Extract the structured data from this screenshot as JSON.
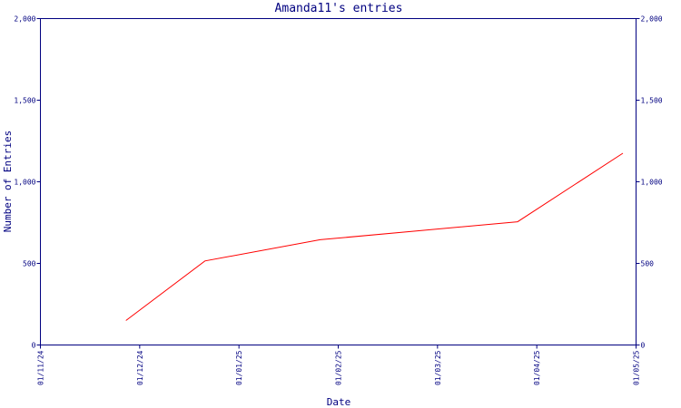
{
  "chart_data": {
    "type": "line",
    "title": "Amanda11's entries",
    "xlabel": "Date",
    "ylabel": "Number of Entries",
    "x_ticks": [
      "01/11/24",
      "01/12/24",
      "01/01/25",
      "01/02/25",
      "01/03/25",
      "01/04/25",
      "01/05/25"
    ],
    "y_ticks": [
      "0",
      "500",
      "1,000",
      "1,500",
      "2,000"
    ],
    "ylim": [
      0,
      2000
    ],
    "xlim": [
      "2024-11-01",
      "2025-05-01"
    ],
    "grid": false,
    "series": [
      {
        "color": "#ff0000",
        "points": [
          {
            "date": "2024-11-27",
            "value": 150
          },
          {
            "date": "2024-12-21",
            "value": 515
          },
          {
            "date": "2025-01-25",
            "value": 645
          },
          {
            "date": "2025-03-26",
            "value": 755
          },
          {
            "date": "2025-04-27",
            "value": 1175
          }
        ]
      }
    ]
  }
}
